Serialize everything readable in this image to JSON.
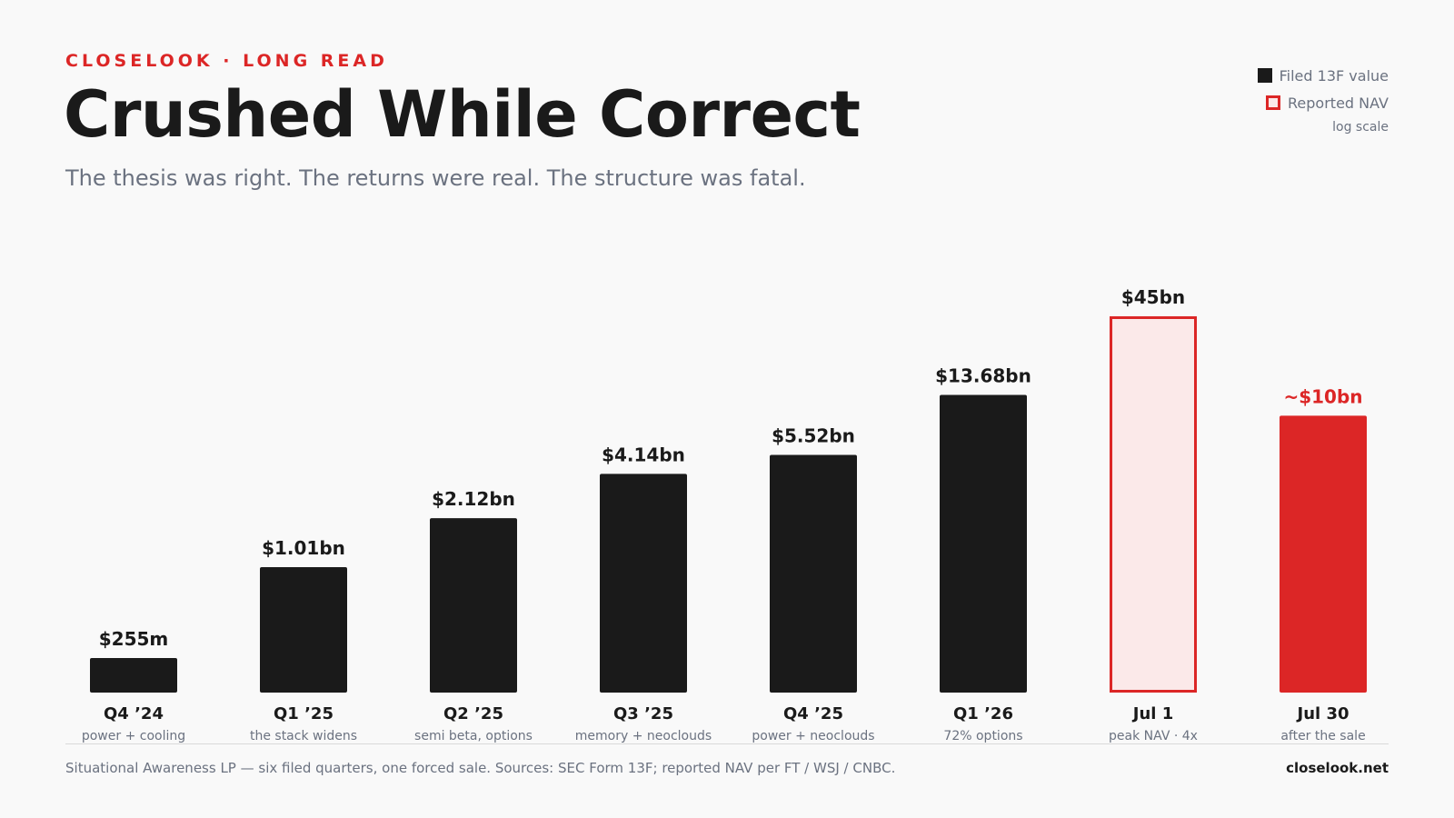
{
  "header": {
    "kicker": "CLOSELOOK · LONG READ",
    "title": "Crushed While Correct",
    "subtitle": "The thesis was right. The returns were real. The structure was fatal."
  },
  "legend": {
    "items": [
      {
        "label": "Filed 13F value",
        "style": "filled",
        "color": "#1a1a1a"
      },
      {
        "label": "Reported NAV",
        "style": "outline",
        "color": "#dc2626"
      }
    ],
    "note": "log scale"
  },
  "chart_data": {
    "type": "bar",
    "scale": "log",
    "unit": "USD billions",
    "categories": [
      "Q4 ’24",
      "Q1 ’25",
      "Q2 ’25",
      "Q3 ’25",
      "Q4 ’25",
      "Q1 ’26",
      "Jul 1",
      "Jul 30"
    ],
    "sublabels": [
      "power + cooling",
      "the stack widens",
      "semi beta, options",
      "memory + neoclouds",
      "power + neoclouds",
      "72% options",
      "peak NAV · 4x",
      "after the sale"
    ],
    "values": [
      0.255,
      1.01,
      2.12,
      4.14,
      5.52,
      13.68,
      45,
      10
    ],
    "value_labels": [
      "$255m",
      "$1.01bn",
      "$2.12bn",
      "$4.14bn",
      "$5.52bn",
      "$13.68bn",
      "$45bn",
      "~$10bn"
    ],
    "kinds": [
      "filed",
      "filed",
      "filed",
      "filed",
      "filed",
      "filed",
      "nav-outline",
      "nav-filled"
    ],
    "colors": {
      "filed": "#1a1a1a",
      "nav": "#dc2626",
      "nav_fill_light": "#fbe9e9"
    }
  },
  "footer": {
    "source": "Situational Awareness LP — six filed quarters, one forced sale. Sources: SEC Form 13F; reported NAV per FT / WSJ / CNBC.",
    "brand": "closelook.net"
  }
}
